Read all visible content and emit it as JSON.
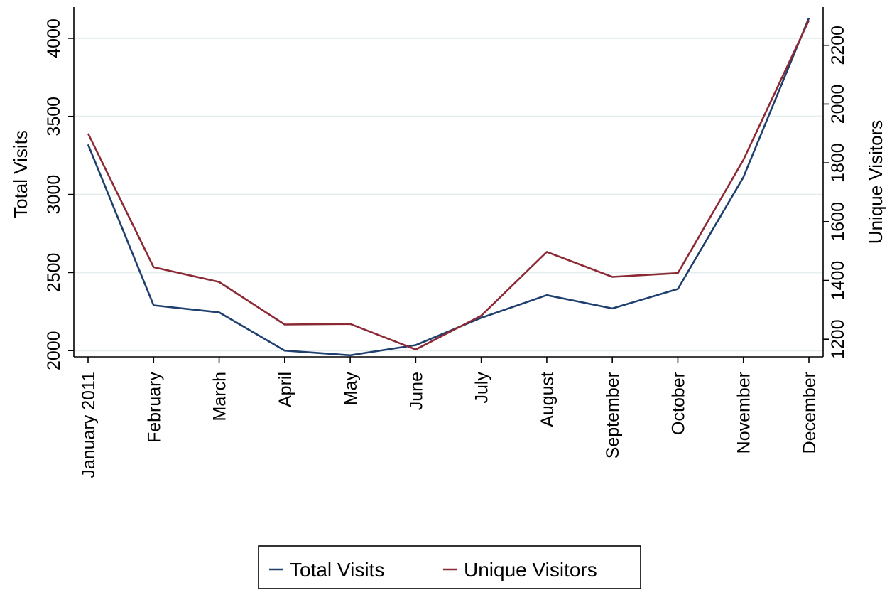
{
  "chart_data": {
    "type": "line",
    "title": "",
    "categories": [
      "January 2011",
      "February",
      "March",
      "April",
      "May",
      "June",
      "July",
      "August",
      "September",
      "October",
      "November",
      "December"
    ],
    "xlabel": "",
    "y_left": {
      "label": "Total Visits",
      "ticks": [
        2000,
        2500,
        3000,
        3500,
        4000
      ],
      "range": [
        1960,
        4200
      ]
    },
    "y_right": {
      "label": "Unique Visitors",
      "ticks": [
        1200,
        1400,
        1600,
        1800,
        2000,
        2200
      ],
      "range": [
        1140,
        2330
      ]
    },
    "series": [
      {
        "name": "Total Visits",
        "axis": "left",
        "color": "#1f3f6e",
        "values": [
          3320,
          2290,
          2245,
          2000,
          1970,
          2035,
          2210,
          2355,
          2270,
          2395,
          3110,
          4130
        ]
      },
      {
        "name": "Unique Visitors",
        "axis": "right",
        "color": "#8b2a35",
        "values": [
          1900,
          1445,
          1395,
          1250,
          1252,
          1165,
          1280,
          1497,
          1412,
          1425,
          1810,
          2285
        ]
      }
    ],
    "grid": true,
    "grid_color": "#e3eeee",
    "legend": {
      "position": "bottom-center",
      "entries": [
        "Total Visits",
        "Unique Visitors"
      ]
    }
  }
}
